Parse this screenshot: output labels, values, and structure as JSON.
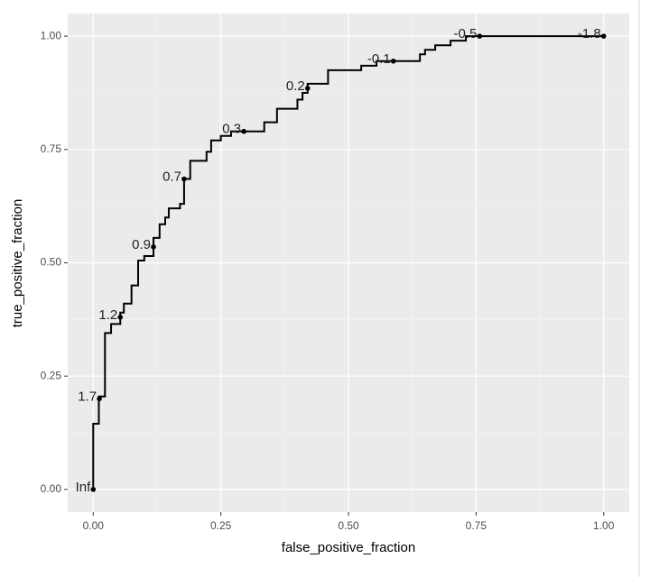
{
  "chart_data": {
    "type": "line",
    "x_label": "false_positive_fraction",
    "y_label": "true_positive_fraction",
    "x": [
      0,
      0,
      0.011,
      0.011,
      0.023,
      0.023,
      0.035,
      0.035,
      0.053,
      0.053,
      0.06,
      0.06,
      0.075,
      0.075,
      0.088,
      0.088,
      0.1,
      0.1,
      0.118,
      0.118,
      0.13,
      0.13,
      0.141,
      0.141,
      0.148,
      0.148,
      0.17,
      0.17,
      0.178,
      0.178,
      0.19,
      0.19,
      0.222,
      0.222,
      0.231,
      0.231,
      0.25,
      0.25,
      0.27,
      0.27,
      0.335,
      0.335,
      0.36,
      0.36,
      0.4,
      0.4,
      0.41,
      0.41,
      0.42,
      0.42,
      0.46,
      0.46,
      0.525,
      0.525,
      0.555,
      0.555,
      0.64,
      0.64,
      0.65,
      0.65,
      0.67,
      0.67,
      0.7,
      0.7,
      0.73,
      0.73,
      1
    ],
    "y": [
      0,
      0.145,
      0.145,
      0.205,
      0.205,
      0.345,
      0.345,
      0.365,
      0.365,
      0.39,
      0.39,
      0.41,
      0.41,
      0.45,
      0.45,
      0.505,
      0.505,
      0.515,
      0.515,
      0.555,
      0.555,
      0.585,
      0.585,
      0.6,
      0.6,
      0.62,
      0.62,
      0.63,
      0.63,
      0.685,
      0.685,
      0.725,
      0.725,
      0.745,
      0.745,
      0.77,
      0.77,
      0.78,
      0.78,
      0.79,
      0.79,
      0.81,
      0.81,
      0.84,
      0.84,
      0.86,
      0.86,
      0.875,
      0.875,
      0.895,
      0.895,
      0.925,
      0.925,
      0.935,
      0.935,
      0.945,
      0.945,
      0.96,
      0.96,
      0.97,
      0.97,
      0.98,
      0.98,
      0.99,
      0.99,
      1,
      1
    ],
    "points": {
      "x": [
        0,
        0.012,
        0.053,
        0.118,
        0.178,
        0.295,
        0.42,
        0.588,
        0.757,
        1
      ],
      "y": [
        0,
        0.2,
        0.38,
        0.535,
        0.685,
        0.79,
        0.885,
        0.945,
        1,
        1
      ],
      "labels": [
        "Inf",
        "1.7",
        "1.2",
        "0.9",
        "0.7",
        "0.3",
        "0.2",
        "-0.1",
        "-0.5",
        "-1.8"
      ]
    },
    "color": "#000000",
    "xlim": [
      -0.05,
      1.05
    ],
    "ylim": [
      -0.05,
      1.05
    ],
    "xticks": [
      {
        "value": 0,
        "label": "0.00"
      },
      {
        "value": 0.25,
        "label": "0.25"
      },
      {
        "value": 0.5,
        "label": "0.50"
      },
      {
        "value": 0.75,
        "label": "0.75"
      },
      {
        "value": 1,
        "label": "1.00"
      }
    ],
    "yticks": [
      {
        "value": 0,
        "label": "0.00"
      },
      {
        "value": 0.25,
        "label": "0.25"
      },
      {
        "value": 0.5,
        "label": "0.50"
      },
      {
        "value": 0.75,
        "label": "0.75"
      },
      {
        "value": 1,
        "label": "1.00"
      }
    ],
    "grid": true
  }
}
